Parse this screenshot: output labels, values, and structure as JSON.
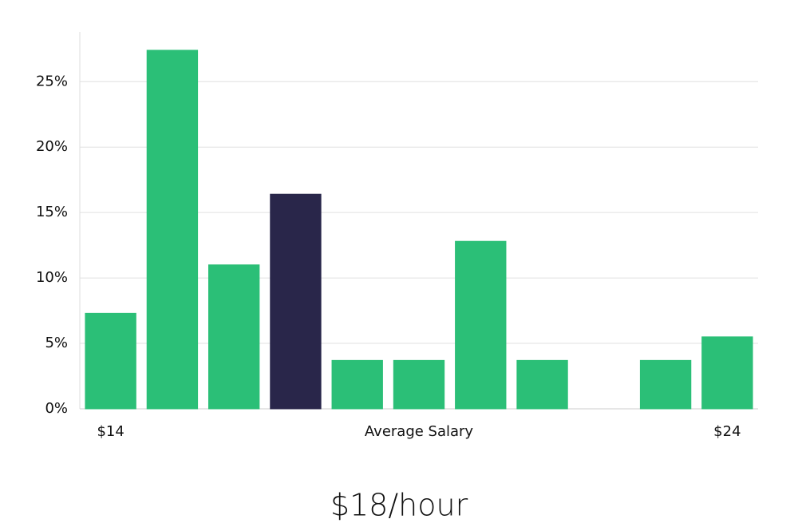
{
  "chart_data": {
    "type": "bar",
    "title": "$18/hour",
    "x_label": "Average Salary",
    "categories": [
      "$14",
      null,
      null,
      null,
      null,
      null,
      null,
      null,
      null,
      null,
      "$24"
    ],
    "values": [
      7.3,
      27.4,
      11.0,
      16.4,
      3.7,
      3.7,
      12.8,
      3.7,
      0,
      3.7,
      5.5
    ],
    "color": "#2bbf77",
    "highlight_index": 3,
    "highlight_color": "#29264a",
    "ylim": [
      0,
      28.8
    ],
    "yticks": [
      {
        "value": 0,
        "label": "0%"
      },
      {
        "value": 5,
        "label": "5%"
      },
      {
        "value": 10,
        "label": "10%"
      },
      {
        "value": 15,
        "label": "15%"
      },
      {
        "value": 20,
        "label": "20%"
      },
      {
        "value": 25,
        "label": "25%"
      }
    ],
    "grid": true
  }
}
